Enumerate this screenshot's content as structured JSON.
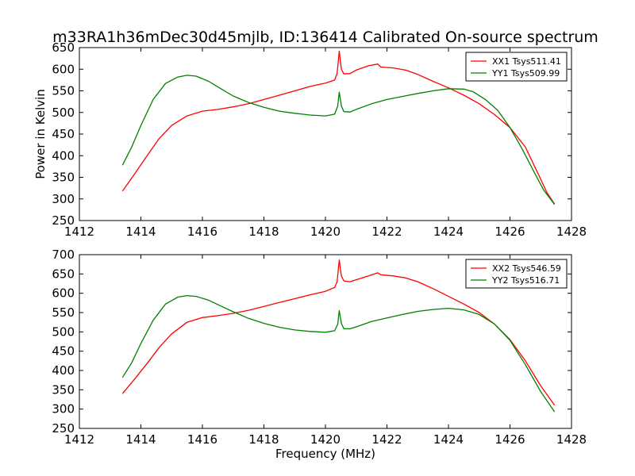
{
  "chart_data": {
    "type": "line",
    "title": "m33RA1h36mDec30d45mjlb, ID:136414 Calibrated On-source spectrum",
    "xlabel": "Frequency (MHz)",
    "ylabel": "Power in Kelvin",
    "grid": false,
    "legend_position": "top-right",
    "panels": [
      {
        "xlim": [
          1412,
          1428
        ],
        "ylim": [
          250,
          650
        ],
        "xticks": [
          "1412",
          "1414",
          "1416",
          "1418",
          "1420",
          "1422",
          "1424",
          "1426",
          "1428"
        ],
        "yticks": [
          "250",
          "300",
          "350",
          "400",
          "450",
          "500",
          "550",
          "600",
          "650"
        ],
        "series": [
          {
            "name": "XX1 Tsys511.41",
            "color": "#ff0000",
            "points": [
              [
                1413.4,
                318
              ],
              [
                1413.8,
                358
              ],
              [
                1414.2,
                400
              ],
              [
                1414.6,
                440
              ],
              [
                1415.0,
                470
              ],
              [
                1415.5,
                492
              ],
              [
                1416.0,
                503
              ],
              [
                1416.5,
                507
              ],
              [
                1417.0,
                513
              ],
              [
                1417.5,
                520
              ],
              [
                1418.0,
                530
              ],
              [
                1418.5,
                540
              ],
              [
                1419.0,
                550
              ],
              [
                1419.5,
                560
              ],
              [
                1420.0,
                568
              ],
              [
                1420.3,
                575
              ],
              [
                1420.38,
                590
              ],
              [
                1420.45,
                642
              ],
              [
                1420.52,
                600
              ],
              [
                1420.6,
                589
              ],
              [
                1420.8,
                590
              ],
              [
                1421.0,
                598
              ],
              [
                1421.4,
                608
              ],
              [
                1421.7,
                612
              ],
              [
                1421.8,
                605
              ],
              [
                1422.2,
                603
              ],
              [
                1422.6,
                598
              ],
              [
                1423.0,
                588
              ],
              [
                1423.5,
                572
              ],
              [
                1424.0,
                557
              ],
              [
                1424.5,
                540
              ],
              [
                1425.0,
                520
              ],
              [
                1425.5,
                495
              ],
              [
                1426.0,
                465
              ],
              [
                1426.5,
                420
              ],
              [
                1427.0,
                345
              ],
              [
                1427.2,
                315
              ],
              [
                1427.45,
                288
              ]
            ]
          },
          {
            "name": "YY1 Tsys509.99",
            "color": "#008000",
            "points": [
              [
                1413.4,
                378
              ],
              [
                1413.7,
                420
              ],
              [
                1414.0,
                470
              ],
              [
                1414.4,
                530
              ],
              [
                1414.8,
                567
              ],
              [
                1415.2,
                582
              ],
              [
                1415.5,
                586
              ],
              [
                1415.8,
                584
              ],
              [
                1416.2,
                572
              ],
              [
                1416.6,
                555
              ],
              [
                1417.0,
                538
              ],
              [
                1417.5,
                523
              ],
              [
                1418.0,
                512
              ],
              [
                1418.5,
                503
              ],
              [
                1419.0,
                498
              ],
              [
                1419.5,
                494
              ],
              [
                1420.0,
                492
              ],
              [
                1420.3,
                496
              ],
              [
                1420.4,
                515
              ],
              [
                1420.45,
                547
              ],
              [
                1420.52,
                515
              ],
              [
                1420.6,
                502
              ],
              [
                1420.8,
                501
              ],
              [
                1421.0,
                507
              ],
              [
                1421.5,
                520
              ],
              [
                1422.0,
                530
              ],
              [
                1422.5,
                537
              ],
              [
                1423.0,
                544
              ],
              [
                1423.5,
                550
              ],
              [
                1424.0,
                555
              ],
              [
                1424.5,
                554
              ],
              [
                1424.8,
                548
              ],
              [
                1425.2,
                530
              ],
              [
                1425.6,
                505
              ],
              [
                1426.0,
                465
              ],
              [
                1426.4,
                415
              ],
              [
                1426.8,
                360
              ],
              [
                1427.1,
                320
              ],
              [
                1427.45,
                287
              ]
            ]
          }
        ]
      },
      {
        "xlim": [
          1412,
          1428
        ],
        "ylim": [
          250,
          700
        ],
        "xticks": [
          "1412",
          "1414",
          "1416",
          "1418",
          "1420",
          "1422",
          "1424",
          "1426",
          "1428"
        ],
        "yticks": [
          "250",
          "300",
          "350",
          "400",
          "450",
          "500",
          "550",
          "600",
          "650",
          "700"
        ],
        "series": [
          {
            "name": "XX2 Tsys546.59",
            "color": "#ff0000",
            "points": [
              [
                1413.4,
                340
              ],
              [
                1413.8,
                378
              ],
              [
                1414.2,
                418
              ],
              [
                1414.6,
                460
              ],
              [
                1415.0,
                495
              ],
              [
                1415.5,
                525
              ],
              [
                1416.0,
                537
              ],
              [
                1416.5,
                542
              ],
              [
                1417.0,
                548
              ],
              [
                1417.5,
                556
              ],
              [
                1418.0,
                566
              ],
              [
                1418.5,
                576
              ],
              [
                1419.0,
                586
              ],
              [
                1419.5,
                596
              ],
              [
                1420.0,
                605
              ],
              [
                1420.3,
                615
              ],
              [
                1420.38,
                630
              ],
              [
                1420.45,
                686
              ],
              [
                1420.52,
                645
              ],
              [
                1420.6,
                632
              ],
              [
                1420.8,
                630
              ],
              [
                1421.0,
                635
              ],
              [
                1421.4,
                645
              ],
              [
                1421.7,
                653
              ],
              [
                1421.8,
                648
              ],
              [
                1422.2,
                645
              ],
              [
                1422.6,
                640
              ],
              [
                1423.0,
                630
              ],
              [
                1423.5,
                612
              ],
              [
                1424.0,
                592
              ],
              [
                1424.5,
                572
              ],
              [
                1425.0,
                550
              ],
              [
                1425.5,
                520
              ],
              [
                1426.0,
                480
              ],
              [
                1426.5,
                425
              ],
              [
                1427.0,
                360
              ],
              [
                1427.45,
                310
              ]
            ]
          },
          {
            "name": "YY2 Tsys516.71",
            "color": "#008000",
            "points": [
              [
                1413.4,
                382
              ],
              [
                1413.7,
                420
              ],
              [
                1414.0,
                470
              ],
              [
                1414.4,
                530
              ],
              [
                1414.8,
                572
              ],
              [
                1415.2,
                590
              ],
              [
                1415.5,
                594
              ],
              [
                1415.8,
                592
              ],
              [
                1416.2,
                582
              ],
              [
                1416.6,
                567
              ],
              [
                1417.0,
                552
              ],
              [
                1417.5,
                535
              ],
              [
                1418.0,
                522
              ],
              [
                1418.5,
                512
              ],
              [
                1419.0,
                505
              ],
              [
                1419.5,
                501
              ],
              [
                1420.0,
                499
              ],
              [
                1420.3,
                503
              ],
              [
                1420.4,
                520
              ],
              [
                1420.45,
                555
              ],
              [
                1420.52,
                522
              ],
              [
                1420.6,
                508
              ],
              [
                1420.8,
                508
              ],
              [
                1421.0,
                513
              ],
              [
                1421.5,
                527
              ],
              [
                1422.0,
                536
              ],
              [
                1422.5,
                545
              ],
              [
                1423.0,
                553
              ],
              [
                1423.5,
                558
              ],
              [
                1424.0,
                561
              ],
              [
                1424.5,
                557
              ],
              [
                1425.0,
                545
              ],
              [
                1425.5,
                520
              ],
              [
                1426.0,
                478
              ],
              [
                1426.5,
                415
              ],
              [
                1427.0,
                345
              ],
              [
                1427.45,
                293
              ]
            ]
          }
        ]
      }
    ]
  }
}
